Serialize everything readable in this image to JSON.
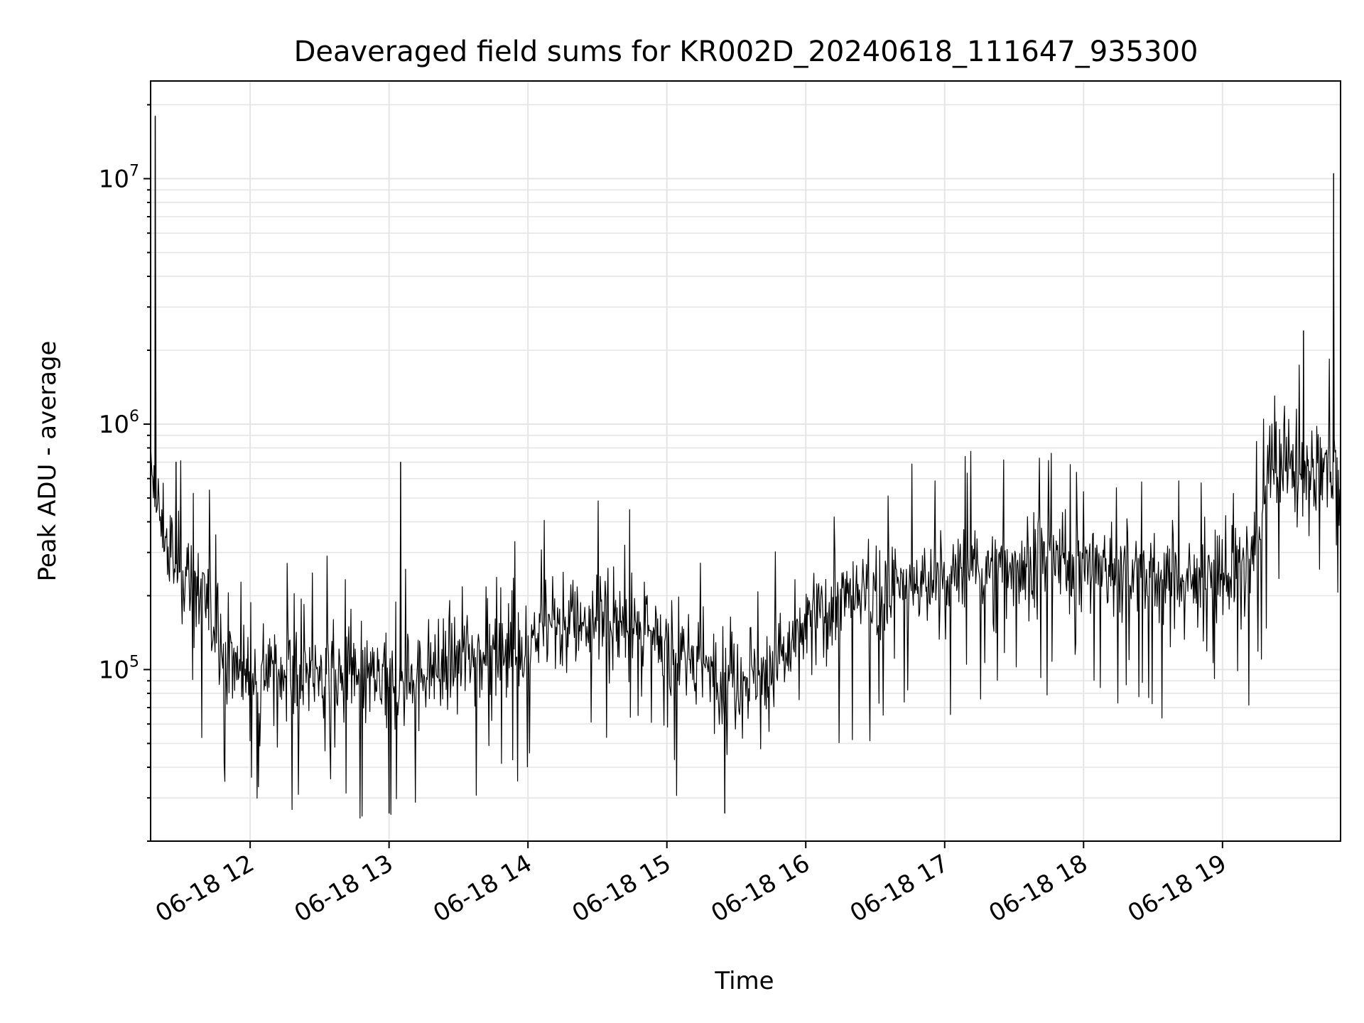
{
  "chart_data": {
    "type": "line",
    "title": "Deaveraged field sums for KR002D_20240618_111647_935300",
    "xlabel": "Time",
    "ylabel": "Peak ADU - average",
    "y_scale": "log",
    "ylim": [
      20000,
      25000000
    ],
    "xlim": [
      "06-18 11:17",
      "06-18 19:51"
    ],
    "grid": true,
    "line_color": "#000000",
    "grid_color": "#e5e5e5",
    "x_ticks": [
      {
        "t": "06-18 12:00",
        "label": "06-18 12"
      },
      {
        "t": "06-18 13:00",
        "label": "06-18 13"
      },
      {
        "t": "06-18 14:00",
        "label": "06-18 14"
      },
      {
        "t": "06-18 15:00",
        "label": "06-18 15"
      },
      {
        "t": "06-18 16:00",
        "label": "06-18 16"
      },
      {
        "t": "06-18 17:00",
        "label": "06-18 17"
      },
      {
        "t": "06-18 18:00",
        "label": "06-18 18"
      },
      {
        "t": "06-18 19:00",
        "label": "06-18 19"
      }
    ],
    "y_ticks": [
      {
        "value": 100000,
        "base": "10",
        "exp": "5"
      },
      {
        "value": 1000000,
        "base": "10",
        "exp": "6"
      },
      {
        "value": 10000000,
        "base": "10",
        "exp": "7"
      }
    ],
    "series": [
      {
        "x": [
          "06-18 11:17",
          "06-18 11:20",
          "06-18 11:25",
          "06-18 11:30",
          "06-18 11:35",
          "06-18 11:40",
          "06-18 11:45",
          "06-18 11:50",
          "06-18 11:55",
          "06-18 12:00",
          "06-18 12:10",
          "06-18 12:20",
          "06-18 12:30",
          "06-18 12:40",
          "06-18 12:50",
          "06-18 13:00",
          "06-18 13:10",
          "06-18 13:20",
          "06-18 13:30",
          "06-18 13:40",
          "06-18 13:50",
          "06-18 14:00",
          "06-18 14:10",
          "06-18 14:20",
          "06-18 14:30",
          "06-18 14:40",
          "06-18 14:50",
          "06-18 15:00",
          "06-18 15:10",
          "06-18 15:20",
          "06-18 15:30",
          "06-18 15:40",
          "06-18 15:50",
          "06-18 16:00",
          "06-18 16:10",
          "06-18 16:20",
          "06-18 16:30",
          "06-18 16:40",
          "06-18 16:50",
          "06-18 17:00",
          "06-18 17:10",
          "06-18 17:20",
          "06-18 17:30",
          "06-18 17:40",
          "06-18 17:50",
          "06-18 18:00",
          "06-18 18:10",
          "06-18 18:20",
          "06-18 18:30",
          "06-18 18:40",
          "06-18 18:50",
          "06-18 19:00",
          "06-18 19:10",
          "06-18 19:15",
          "06-18 19:20",
          "06-18 19:25",
          "06-18 19:30",
          "06-18 19:35",
          "06-18 19:40",
          "06-18 19:45",
          "06-18 19:51"
        ],
        "y": [
          600000,
          450000,
          300000,
          250000,
          220000,
          200000,
          150000,
          110000,
          100000,
          100000,
          100000,
          95000,
          95000,
          90000,
          90000,
          85000,
          95000,
          100000,
          110000,
          120000,
          130000,
          130000,
          150000,
          160000,
          160000,
          150000,
          140000,
          120000,
          110000,
          100000,
          95000,
          95000,
          110000,
          150000,
          180000,
          190000,
          200000,
          220000,
          220000,
          230000,
          250000,
          260000,
          270000,
          270000,
          270000,
          270000,
          260000,
          250000,
          240000,
          240000,
          240000,
          240000,
          260000,
          300000,
          600000,
          650000,
          650000,
          600000,
          650000,
          700000,
          700000
        ]
      }
    ],
    "spikes": [
      {
        "x": "06-18 11:19",
        "y": 18000000
      },
      {
        "x": "06-18 11:28",
        "y": 700000
      },
      {
        "x": "06-18 13:05",
        "y": 700000
      },
      {
        "x": "06-18 13:00",
        "y": 26000
      },
      {
        "x": "06-18 15:25",
        "y": 26000
      },
      {
        "x": "06-18 19:35",
        "y": 2400000
      },
      {
        "x": "06-18 19:48",
        "y": 10500000
      }
    ]
  }
}
